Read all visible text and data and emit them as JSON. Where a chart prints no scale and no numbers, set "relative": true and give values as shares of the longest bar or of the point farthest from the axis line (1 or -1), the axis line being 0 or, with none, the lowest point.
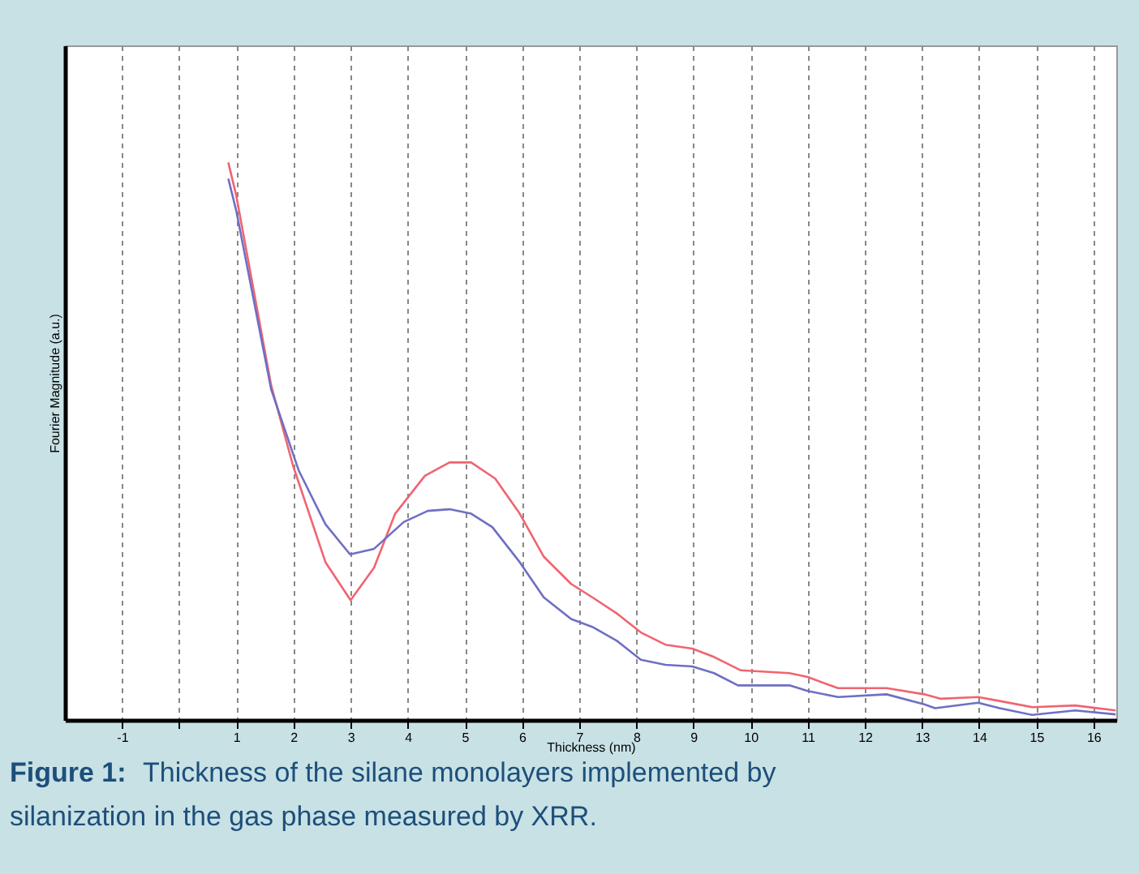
{
  "chart_data": {
    "type": "line",
    "xlabel": "Thickness (nm)",
    "ylabel": "Fourier Magnitude (a.u.)",
    "relative": true,
    "xlim": [
      -2,
      16.4
    ],
    "xticks": [
      -1,
      {
        "value": 0,
        "label": null
      },
      1,
      2,
      3,
      4,
      5,
      6,
      7,
      8,
      9,
      10,
      11,
      12,
      13,
      14,
      15,
      16
    ],
    "grid": "x",
    "marker": "none",
    "line_style": "solid",
    "series": [
      {
        "color": "#f06470",
        "x": [
          0.86,
          1.0,
          1.61,
          1.99,
          2.56,
          3.0,
          3.41,
          3.78,
          4.3,
          4.73,
          5.11,
          5.53,
          5.96,
          6.38,
          6.86,
          7.23,
          7.66,
          8.08,
          8.51,
          8.98,
          9.36,
          9.83,
          10.68,
          11.0,
          11.53,
          12.38,
          13.04,
          13.32,
          13.98,
          14.36,
          14.93,
          15.68,
          16.39
        ],
        "values": [
          1.0,
          0.94,
          0.6,
          0.457,
          0.283,
          0.215,
          0.273,
          0.37,
          0.438,
          0.462,
          0.462,
          0.433,
          0.37,
          0.293,
          0.244,
          0.22,
          0.191,
          0.157,
          0.135,
          0.128,
          0.113,
          0.089,
          0.084,
          0.077,
          0.057,
          0.057,
          0.046,
          0.038,
          0.041,
          0.034,
          0.023,
          0.026,
          0.017
        ]
      },
      {
        "color": "#6f6fc4",
        "x": [
          0.86,
          1.0,
          1.61,
          2.09,
          2.56,
          2.99,
          3.41,
          3.93,
          4.35,
          4.73,
          5.11,
          5.48,
          5.96,
          6.38,
          6.86,
          7.23,
          7.66,
          8.08,
          8.51,
          8.98,
          9.36,
          9.78,
          10.68,
          11.0,
          11.53,
          12.38,
          13.04,
          13.23,
          13.98,
          14.36,
          14.93,
          15.68,
          16.39
        ],
        "values": [
          0.971,
          0.913,
          0.593,
          0.448,
          0.351,
          0.297,
          0.307,
          0.355,
          0.375,
          0.378,
          0.37,
          0.346,
          0.283,
          0.22,
          0.181,
          0.167,
          0.142,
          0.108,
          0.099,
          0.096,
          0.084,
          0.062,
          0.062,
          0.052,
          0.041,
          0.046,
          0.028,
          0.021,
          0.031,
          0.021,
          0.009,
          0.017,
          0.01
        ]
      }
    ],
    "annotations": [
      "Figure 1:",
      "Thickness of the silane monolayers implemented by silanization in the gas phase measured by XRR."
    ]
  }
}
